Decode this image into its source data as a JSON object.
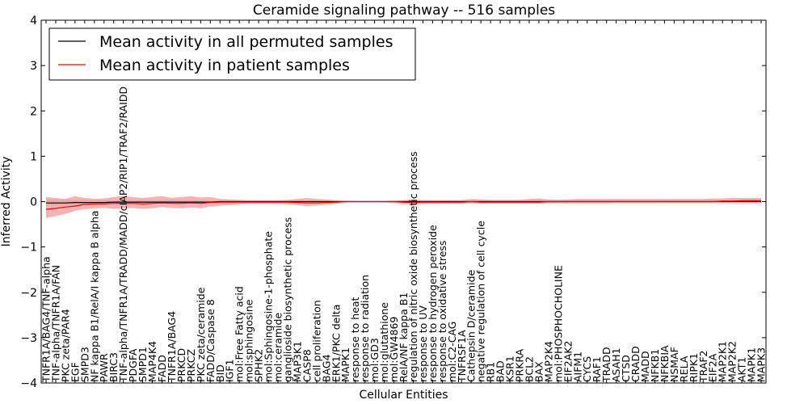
{
  "chart_data": {
    "type": "line",
    "title": "Ceramide signaling pathway -- 516 samples",
    "xlabel": "Cellular Entities",
    "ylabel": "Inferred Activity",
    "ylim": [
      -4,
      4
    ],
    "yticks": [
      -4,
      -3,
      -2,
      -1,
      0,
      1,
      2,
      3,
      4
    ],
    "grid": false,
    "legend_position": "top-left",
    "categories": [
      "TNFR1A/BAG4/TNF-alpha",
      "TNF-alpha/TNFR1A/FAN",
      "PKC zeta/PAR4",
      "EGF",
      "SMPD3",
      "NF kappa B1/RelA/I kappa B alpha",
      "PAWR",
      "BIRC3",
      "TNF-alpha/TNFR1A/TRADD/MADD/cIAP2/RIP1/TRAF2/RAIDD",
      "PDGFA",
      "SMPD1",
      "MAP4K4",
      "FADD",
      "TNFR1A/BAG4",
      "PRKCD",
      "PRKCZ",
      "PKC zeta/ceramide",
      "FADD/Caspase 8",
      "BID",
      "IGF1",
      "mol:Free Fatty acid",
      "mol:sphingosine",
      "SPHK2",
      "mol:Sphingosine-1-phosphate",
      "mol:ceramide",
      "ganglioside biosynthetic process",
      "MAP3K1",
      "CASP8",
      "cell proliferation",
      "BAG4",
      "ERK1/PKC delta",
      "MAPK1",
      "response to heat",
      "response to radiation",
      "mol:GD3",
      "mol:glutathione",
      "mol:GW4869",
      "RelA/NF kappa B1",
      "regulation of nitric oxide biosynthetic process",
      "response to UV",
      "response to hydrogen peroxide",
      "response to oxidative stress",
      "mol:C2-CAG",
      "TNFRSF1A",
      "Cathepsin D/ceramide",
      "negative regulation of cell cycle",
      "RB1",
      "BAD",
      "KSR1",
      "PRKRA",
      "BCL2",
      "BAX",
      "MAP2K4",
      "mol:PHOSPHOCHOLINE",
      "EIF2AK2",
      "AIFM1",
      "CYCS",
      "RAF1",
      "TRADD",
      "ASAH1",
      "CTSD",
      "CRADD",
      "MADD",
      "NFKB1",
      "NFKBIA",
      "NSMAF",
      "RELA",
      "RIPK1",
      "TRAF2",
      "EIF2A",
      "MAP2K1",
      "MAP2K2",
      "AKT1",
      "MAPK1",
      "MAPK3"
    ],
    "series": [
      {
        "name": "Mean activity in all permuted samples",
        "color": "#000000",
        "values": [
          -0.03,
          -0.03,
          -0.03,
          -0.02,
          -0.02,
          -0.02,
          -0.02,
          -0.01,
          -0.01,
          -0.01,
          -0.01,
          -0.01,
          -0.01,
          -0.01,
          -0.01,
          -0.01,
          -0.01,
          -0.01,
          0,
          0,
          0,
          0,
          0,
          0,
          0,
          0,
          0,
          0,
          0,
          0,
          0,
          0,
          0,
          0,
          0,
          0,
          0,
          0,
          0,
          0,
          0,
          0,
          0,
          0,
          0,
          0,
          0,
          0,
          0,
          0,
          0,
          0,
          0,
          0,
          0,
          0,
          0,
          0,
          0,
          0,
          0,
          0,
          0,
          0,
          0,
          0,
          0,
          0,
          0,
          0,
          0,
          0,
          0,
          0,
          0
        ],
        "band_lower": [
          -0.1,
          -0.1,
          -0.09,
          -0.08,
          -0.07,
          -0.07,
          -0.06,
          -0.05,
          -0.05,
          -0.05,
          -0.05,
          -0.04,
          -0.04,
          -0.04,
          -0.04,
          -0.04,
          -0.04,
          -0.03,
          -0.03,
          -0.03,
          -0.02,
          -0.02,
          -0.02,
          -0.02,
          -0.02,
          -0.02,
          -0.03,
          -0.03,
          -0.03,
          -0.02,
          -0.02,
          -0.01,
          -0.01,
          -0.01,
          -0.01,
          -0.02,
          -0.05,
          -0.08,
          -0.09,
          -0.07,
          -0.06,
          -0.06,
          -0.05,
          -0.05,
          -0.05,
          -0.05,
          -0.04,
          -0.04,
          -0.04,
          -0.04,
          -0.04,
          -0.05,
          -0.05,
          -0.05,
          -0.06,
          -0.06,
          -0.06,
          -0.06,
          -0.06,
          -0.06,
          -0.06,
          -0.06,
          -0.06,
          -0.06,
          -0.05,
          -0.05,
          -0.05,
          -0.05,
          -0.05,
          -0.05,
          -0.06,
          -0.06,
          -0.07,
          -0.06,
          -0.06
        ],
        "band_upper": [
          0.05,
          0.05,
          0.05,
          0.04,
          0.04,
          0.04,
          0.04,
          0.03,
          0.03,
          0.03,
          0.03,
          0.03,
          0.03,
          0.03,
          0.03,
          0.03,
          0.03,
          0.02,
          0.02,
          0.02,
          0.02,
          0.02,
          0.02,
          0.02,
          0.02,
          0.02,
          0.02,
          0.02,
          0.02,
          0.02,
          0.01,
          0.01,
          0.01,
          0.01,
          0.01,
          0.01,
          0.02,
          0.03,
          0.04,
          0.03,
          0.03,
          0.03,
          0.03,
          0.03,
          0.03,
          0.03,
          0.03,
          0.03,
          0.03,
          0.03,
          0.03,
          0.03,
          0.03,
          0.03,
          0.03,
          0.03,
          0.03,
          0.03,
          0.03,
          0.03,
          0.03,
          0.03,
          0.03,
          0.03,
          0.03,
          0.03,
          0.03,
          0.03,
          0.03,
          0.04,
          0.04,
          0.04,
          0.04,
          0.04,
          0.04
        ]
      },
      {
        "name": "Mean activity in patient samples",
        "color": "#ff0000",
        "values": [
          -0.17,
          -0.15,
          -0.12,
          -0.1,
          -0.06,
          -0.05,
          -0.05,
          -0.04,
          -0.04,
          -0.04,
          -0.05,
          -0.04,
          -0.03,
          -0.04,
          -0.04,
          -0.03,
          -0.04,
          -0.02,
          -0.01,
          -0.01,
          -0.01,
          -0.01,
          -0.01,
          -0.01,
          -0.01,
          -0.01,
          -0.02,
          -0.03,
          -0.03,
          -0.02,
          -0.01,
          0,
          0,
          0,
          0,
          0,
          0,
          -0.01,
          -0.02,
          -0.01,
          -0.01,
          -0.01,
          -0.01,
          -0.01,
          0,
          -0.01,
          -0.01,
          -0.01,
          -0.01,
          -0.01,
          -0.01,
          -0.01,
          0,
          0,
          0,
          0,
          0,
          0,
          0,
          0,
          0,
          0,
          0,
          0,
          0,
          0,
          0,
          0,
          0,
          0,
          0.01,
          0.01,
          0.02,
          0.02,
          0.02
        ],
        "band_lower": [
          -0.36,
          -0.32,
          -0.27,
          -0.2,
          -0.17,
          -0.15,
          -0.14,
          -0.16,
          -0.15,
          -0.14,
          -0.16,
          -0.15,
          -0.12,
          -0.14,
          -0.15,
          -0.13,
          -0.15,
          -0.11,
          -0.09,
          -0.08,
          -0.06,
          -0.05,
          -0.05,
          -0.05,
          -0.05,
          -0.06,
          -0.08,
          -0.1,
          -0.09,
          -0.07,
          -0.05,
          -0.02,
          -0.01,
          -0.01,
          -0.01,
          -0.01,
          -0.02,
          -0.04,
          -0.05,
          -0.04,
          -0.04,
          -0.04,
          -0.04,
          -0.04,
          -0.03,
          -0.04,
          -0.04,
          -0.04,
          -0.04,
          -0.04,
          -0.04,
          -0.04,
          -0.03,
          -0.03,
          -0.03,
          -0.03,
          -0.03,
          -0.03,
          -0.03,
          -0.02,
          -0.02,
          -0.02,
          -0.02,
          -0.02,
          -0.02,
          -0.02,
          -0.02,
          -0.02,
          -0.02,
          -0.02,
          -0.02,
          -0.02,
          -0.02,
          -0.02,
          -0.02
        ],
        "band_upper": [
          0.1,
          0.08,
          0.06,
          0.12,
          0.08,
          0.06,
          0.07,
          0.1,
          0.12,
          0.1,
          0.08,
          0.1,
          0.12,
          0.08,
          0.1,
          0.12,
          0.09,
          0.1,
          0.06,
          0.05,
          0.04,
          0.03,
          0.03,
          0.03,
          0.03,
          0.04,
          0.06,
          0.08,
          0.06,
          0.05,
          0.03,
          0.02,
          0.01,
          0.01,
          0.01,
          0.01,
          0.02,
          0.03,
          0.04,
          0.03,
          0.03,
          0.03,
          0.03,
          0.03,
          0.06,
          0.05,
          0.04,
          0.04,
          0.04,
          0.04,
          0.06,
          0.07,
          0.05,
          0.04,
          0.05,
          0.06,
          0.06,
          0.06,
          0.06,
          0.06,
          0.06,
          0.06,
          0.06,
          0.06,
          0.06,
          0.06,
          0.06,
          0.06,
          0.06,
          0.07,
          0.07,
          0.08,
          0.08,
          0.08,
          0.08
        ]
      }
    ]
  }
}
